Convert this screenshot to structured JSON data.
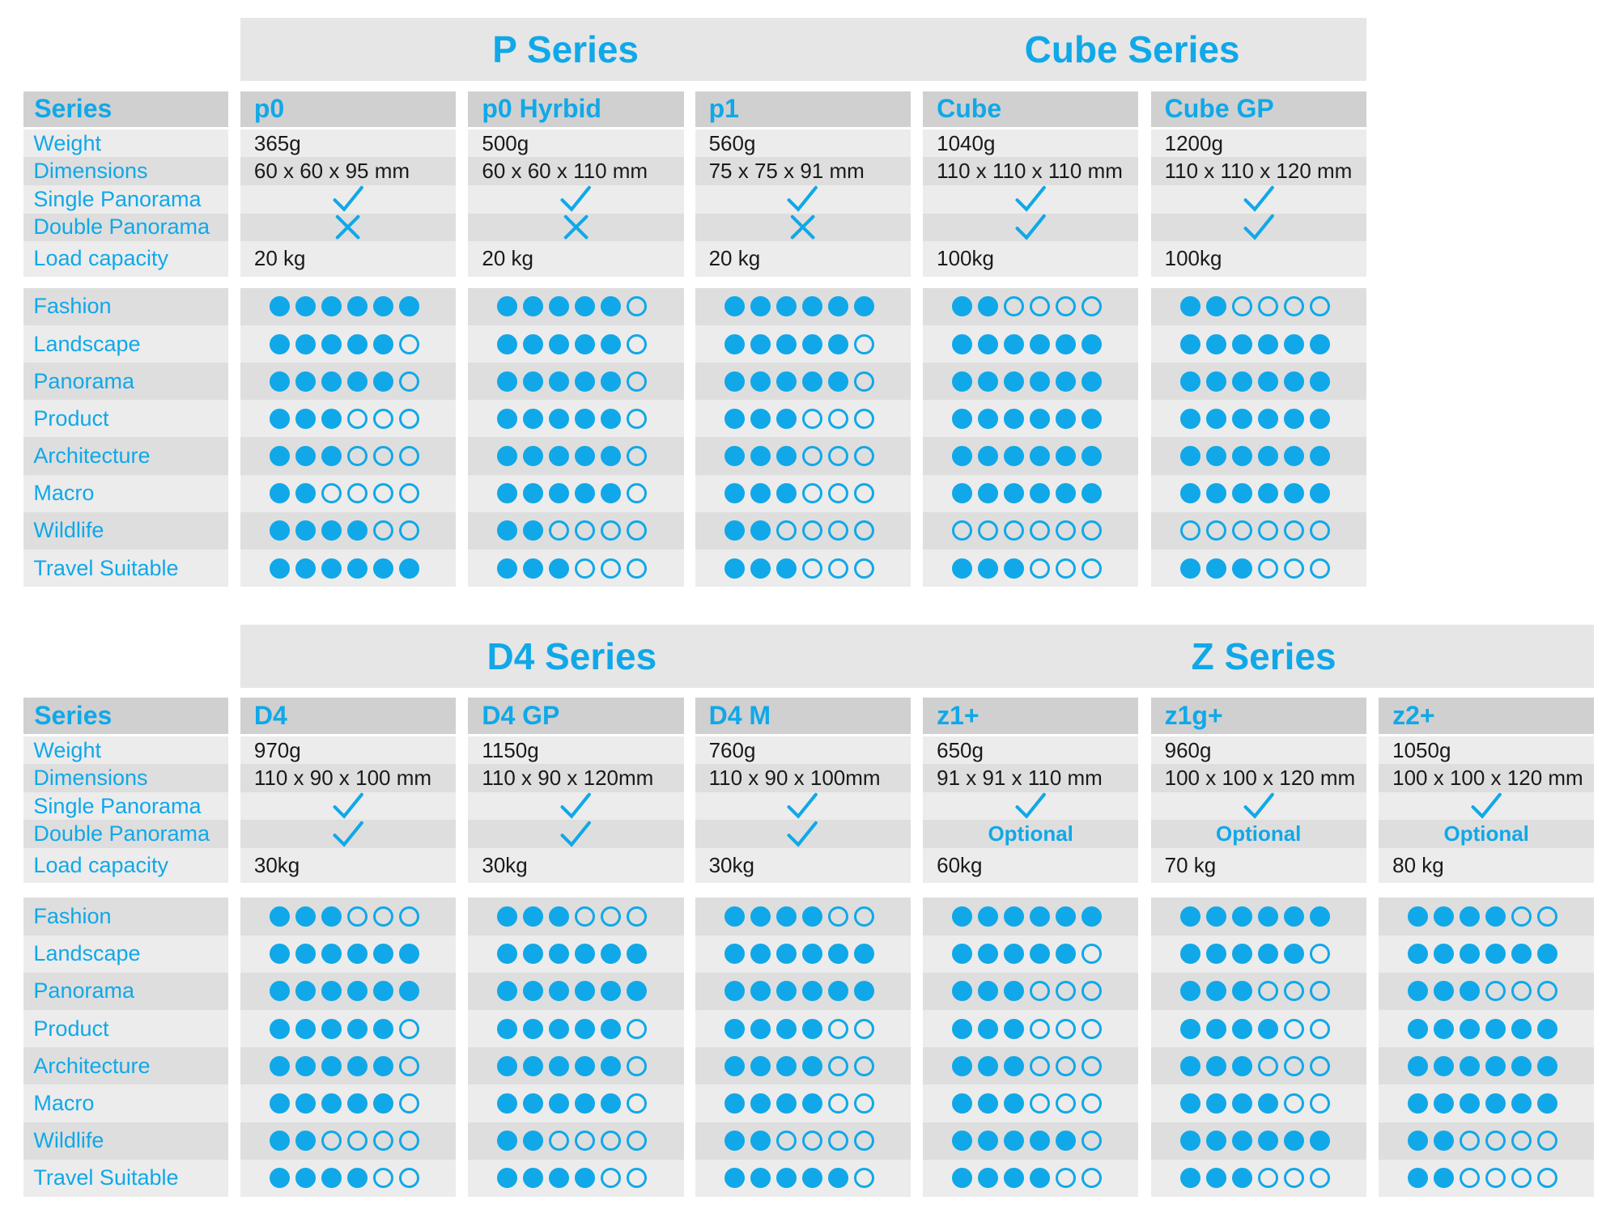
{
  "colors": {
    "accent": "#10a8e8",
    "header_bg": "#d0d0d0",
    "row_light": "#ececec",
    "row_dark": "#dedede",
    "text": "#1a1a1a"
  },
  "spec_labels": [
    "Series",
    "Weight",
    "Dimensions",
    "Single Panorama",
    "Double Panorama",
    "Load capacity"
  ],
  "rating_labels": [
    "Fashion",
    "Landscape",
    "Panorama",
    "Product",
    "Architecture",
    "Macro",
    "Wildlife",
    "Travel Suitable"
  ],
  "rating_max": 6,
  "sections": [
    {
      "series_titles": [
        {
          "text": "P Series"
        },
        {
          "text": "Cube Series"
        }
      ],
      "models": [
        {
          "name": "p0",
          "weight": "365g",
          "dimensions": "60 x 60 x 95 mm",
          "single": "check",
          "double": "cross",
          "load": "20 kg",
          "ratings": [
            6,
            5,
            5,
            3,
            3,
            2,
            4,
            6
          ]
        },
        {
          "name": "p0 Hyrbid",
          "weight": "500g",
          "dimensions": "60 x 60 x 110 mm",
          "single": "check",
          "double": "cross",
          "load": "20 kg",
          "ratings": [
            5,
            5,
            5,
            5,
            5,
            5,
            2,
            3
          ]
        },
        {
          "name": "p1",
          "weight": "560g",
          "dimensions": "75 x 75 x 91 mm",
          "single": "check",
          "double": "cross",
          "load": "20 kg",
          "ratings": [
            6,
            5,
            5,
            3,
            3,
            3,
            2,
            3
          ]
        },
        {
          "name": "Cube",
          "weight": "1040g",
          "dimensions": "110 x 110 x 110 mm",
          "single": "check",
          "double": "check",
          "load": "100kg",
          "ratings": [
            2,
            6,
            6,
            6,
            6,
            6,
            0,
            3
          ]
        },
        {
          "name": "Cube GP",
          "weight": "1200g",
          "dimensions": "110 x 110 x 120 mm",
          "single": "check",
          "double": "check",
          "load": "100kg",
          "ratings": [
            2,
            6,
            6,
            6,
            6,
            6,
            0,
            3
          ]
        }
      ]
    },
    {
      "series_titles": [
        {
          "text": "D4 Series"
        },
        {
          "text": "Z Series"
        }
      ],
      "models": [
        {
          "name": "D4",
          "weight": "970g",
          "dimensions": "110 x 90 x 100 mm",
          "single": "check",
          "double": "check",
          "load": "30kg",
          "ratings": [
            3,
            6,
            6,
            5,
            5,
            5,
            2,
            4
          ]
        },
        {
          "name": "D4 GP",
          "weight": "1150g",
          "dimensions": "110 x 90  x 120mm",
          "single": "check",
          "double": "check",
          "load": "30kg",
          "ratings": [
            3,
            6,
            6,
            5,
            5,
            5,
            2,
            4
          ]
        },
        {
          "name": "D4 M",
          "weight": "760g",
          "dimensions": "110 x 90 x 100mm",
          "single": "check",
          "double": "check",
          "load": "30kg",
          "ratings": [
            4,
            6,
            6,
            4,
            4,
            4,
            2,
            5
          ]
        },
        {
          "name": "z1+",
          "weight": "650g",
          "dimensions": "91 x 91 x 110 mm",
          "single": "check",
          "double": "Optional",
          "load": "60kg",
          "ratings": [
            6,
            5,
            3,
            3,
            3,
            3,
            5,
            4
          ]
        },
        {
          "name": "z1g+",
          "weight": "960g",
          "dimensions": "100 x 100 x 120 mm",
          "single": "check",
          "double": "Optional",
          "load": "70 kg",
          "ratings": [
            6,
            5,
            3,
            4,
            3,
            4,
            6,
            3
          ]
        },
        {
          "name": "z2+",
          "weight": "1050g",
          "dimensions": "100 x 100 x 120 mm",
          "single": "check",
          "double": "Optional",
          "load": "80 kg",
          "ratings": [
            4,
            6,
            3,
            6,
            6,
            6,
            2,
            2
          ]
        }
      ]
    }
  ]
}
